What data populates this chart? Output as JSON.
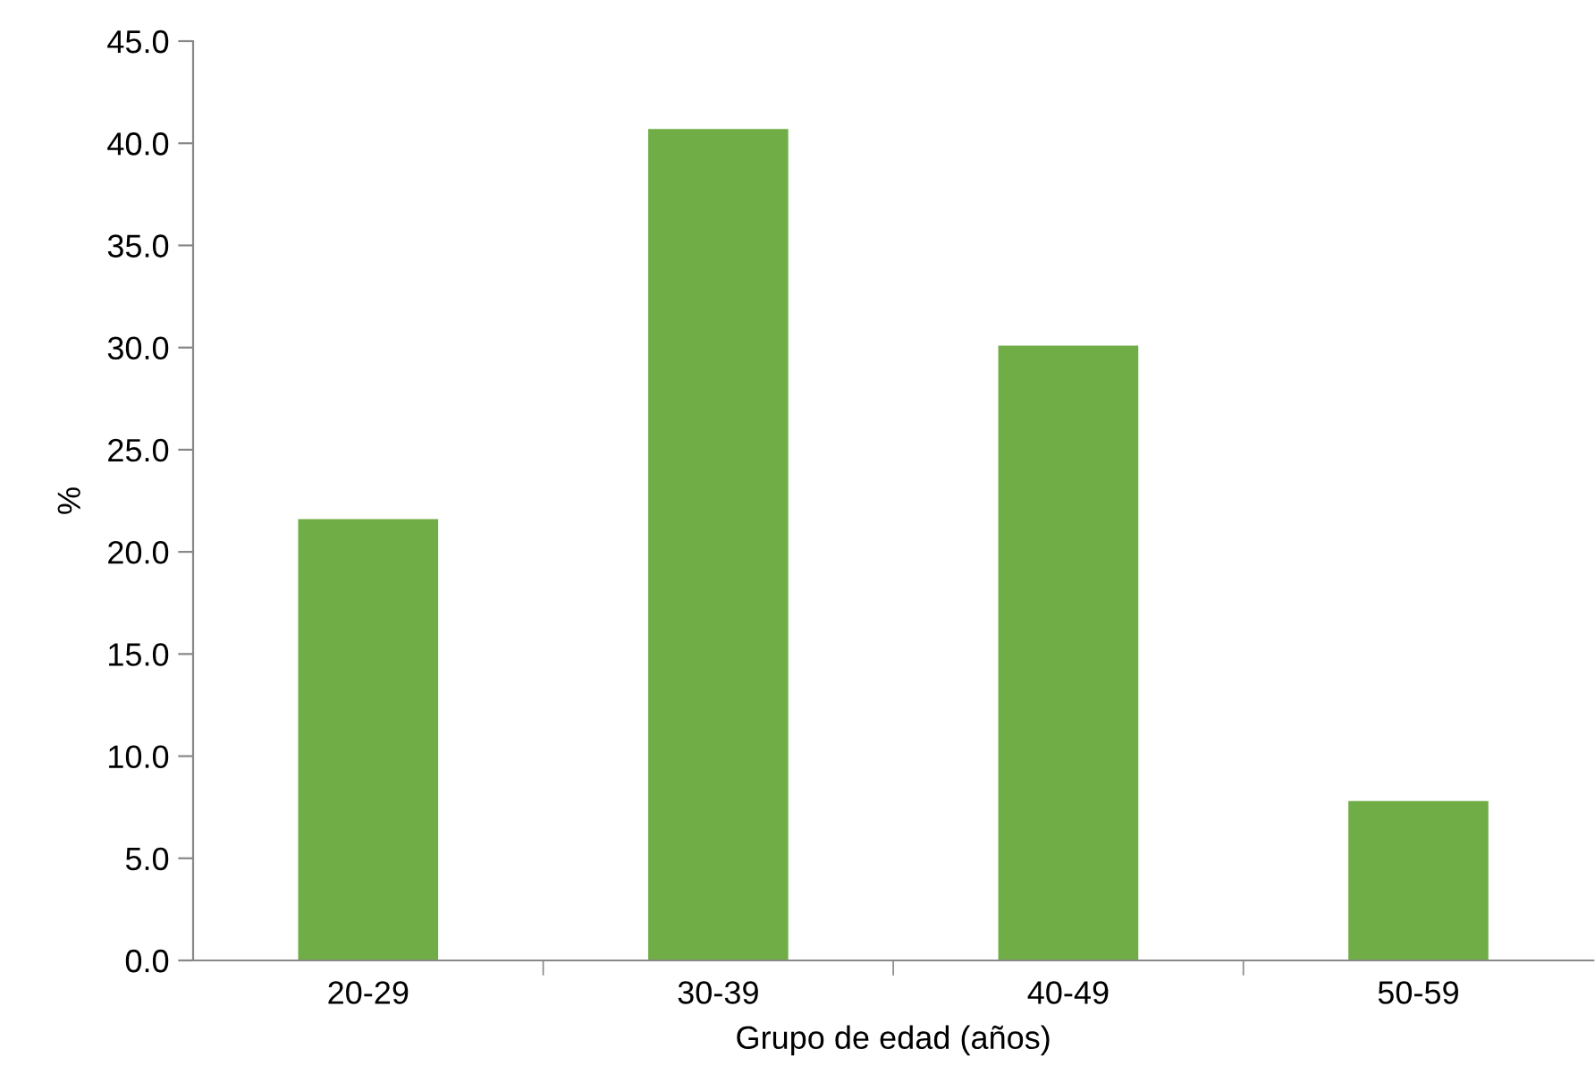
{
  "chart_data": {
    "type": "bar",
    "xlabel": "Grupo de edad (años)",
    "ylabel": "%",
    "categories": [
      "20-29",
      "30-39",
      "40-49",
      "50-59"
    ],
    "values": [
      21.6,
      40.7,
      30.1,
      7.8
    ],
    "color": "#70ad47",
    "ylim": [
      0,
      45
    ],
    "yticks": [
      {
        "value": 0,
        "label": "0.0"
      },
      {
        "value": 5,
        "label": "5.0"
      },
      {
        "value": 10,
        "label": "10.0"
      },
      {
        "value": 15,
        "label": "15.0"
      },
      {
        "value": 20,
        "label": "20.0"
      },
      {
        "value": 25,
        "label": "25.0"
      },
      {
        "value": 30,
        "label": "30.0"
      },
      {
        "value": 35,
        "label": "35.0"
      },
      {
        "value": 40,
        "label": "40.0"
      },
      {
        "value": 45,
        "label": "45.0"
      }
    ],
    "grid": false,
    "legend": false
  }
}
